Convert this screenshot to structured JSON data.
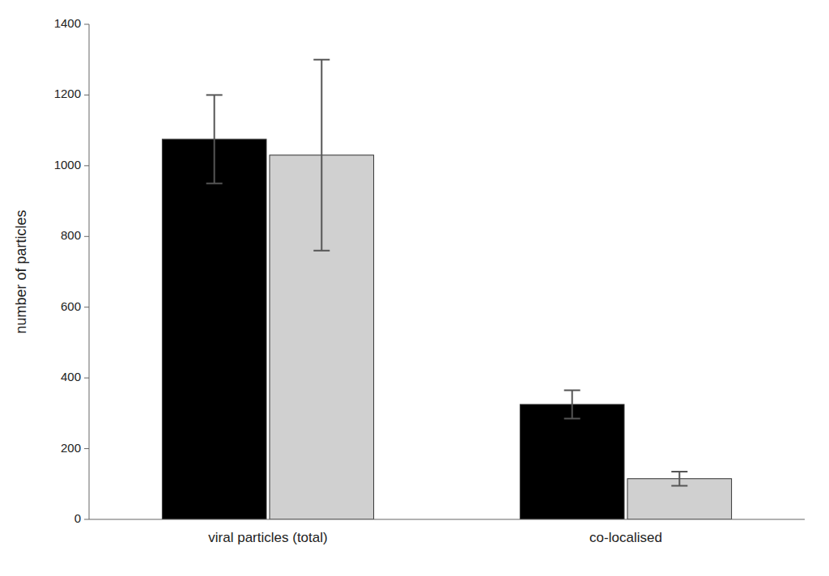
{
  "chart_data": {
    "type": "bar",
    "categories": [
      "viral particles (total)",
      "co-localised"
    ],
    "series": [
      {
        "color": "#000000",
        "values": [
          1075,
          325
        ],
        "errors": [
          125,
          40
        ]
      },
      {
        "color": "#d0d0d0",
        "values": [
          1030,
          115
        ],
        "errors": [
          270,
          20
        ]
      }
    ],
    "ylabel": "number of particles",
    "ylim": [
      0,
      1400
    ],
    "yticks": [
      0,
      200,
      400,
      600,
      800,
      1000,
      1200,
      1400
    ],
    "grid": false
  }
}
